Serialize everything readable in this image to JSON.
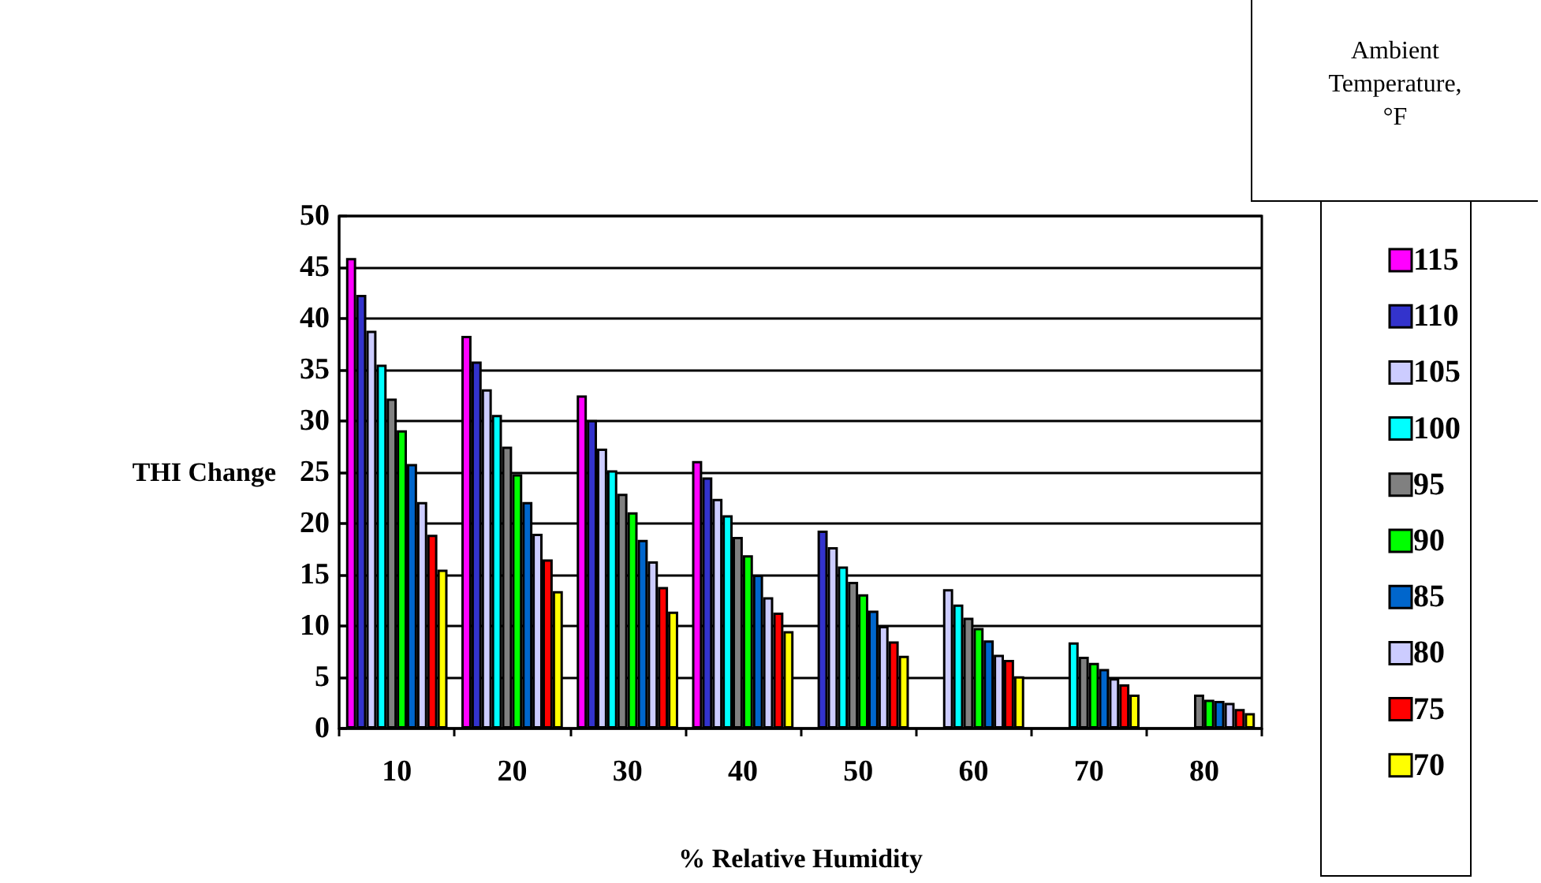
{
  "chart_data": {
    "type": "bar",
    "xlabel": "% Relative Humidity",
    "ylabel": "THI Change",
    "legend_title": "Ambient Temperature, °F",
    "categories": [
      "10",
      "20",
      "30",
      "40",
      "50",
      "60",
      "70",
      "80"
    ],
    "series": [
      {
        "name": "115",
        "color": "#ff00ff",
        "values": [
          45.9,
          38.3,
          32.5,
          26.1,
          null,
          null,
          null,
          null
        ]
      },
      {
        "name": "110",
        "color": "#3333cc",
        "values": [
          42.3,
          35.8,
          30.1,
          24.5,
          19.3,
          null,
          null,
          null
        ]
      },
      {
        "name": "105",
        "color": "#ccccff",
        "values": [
          38.8,
          33.1,
          27.3,
          22.4,
          17.7,
          13.6,
          null,
          null
        ]
      },
      {
        "name": "100",
        "color": "#00ffff",
        "values": [
          35.5,
          30.6,
          25.2,
          20.8,
          15.8,
          12.1,
          8.4,
          null
        ]
      },
      {
        "name": "95",
        "color": "#808080",
        "values": [
          32.2,
          27.5,
          22.9,
          18.7,
          14.3,
          10.8,
          7.0,
          3.3
        ]
      },
      {
        "name": "90",
        "color": "#00ff00",
        "values": [
          29.1,
          24.8,
          21.1,
          16.9,
          13.1,
          9.8,
          6.4,
          2.8
        ]
      },
      {
        "name": "85",
        "color": "#0066cc",
        "values": [
          25.8,
          22.1,
          18.4,
          15.0,
          11.5,
          8.6,
          5.8,
          2.7
        ]
      },
      {
        "name": "80",
        "color": "#ccccff",
        "values": [
          22.1,
          19.0,
          16.3,
          12.8,
          10.0,
          7.2,
          4.9,
          2.5
        ]
      },
      {
        "name": "75",
        "color": "#ff0000",
        "values": [
          18.9,
          16.5,
          13.8,
          11.3,
          8.5,
          6.7,
          4.3,
          1.9
        ]
      },
      {
        "name": "70",
        "color": "#ffff00",
        "values": [
          15.5,
          13.4,
          11.4,
          9.5,
          7.1,
          5.1,
          3.3,
          1.5
        ]
      }
    ],
    "ylim": [
      0,
      50
    ],
    "yticks": [
      0,
      5,
      10,
      15,
      20,
      25,
      30,
      35,
      40,
      45,
      50
    ],
    "grid": "y",
    "legend": "right"
  }
}
